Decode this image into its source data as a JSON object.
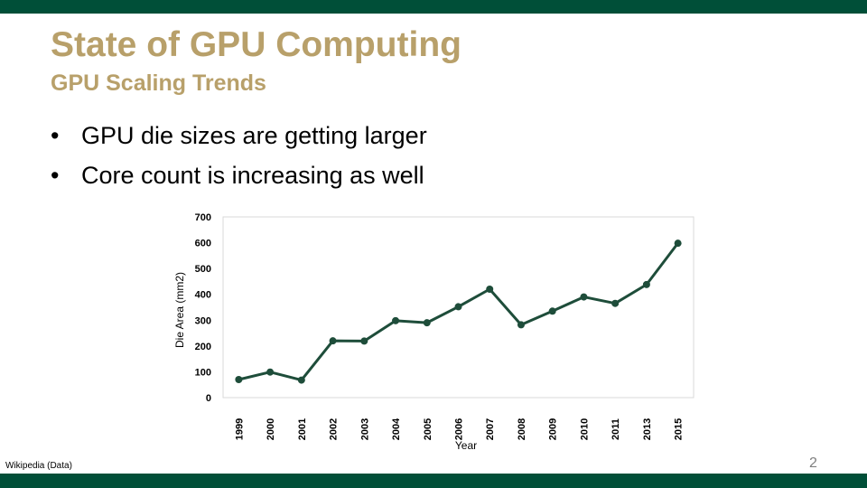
{
  "slide": {
    "title": "State of GPU Computing",
    "subtitle": "GPU Scaling Trends",
    "bullets": [
      "GPU die sizes are getting larger",
      "Core count is increasing as well"
    ],
    "bullet_glyph": "•",
    "source_note": "Wikipedia (Data)",
    "page_number": "2"
  },
  "colors": {
    "bar": "#004f38",
    "title": "#b8a06a",
    "line": "#1e4d3a",
    "grid": "#d9d9d9",
    "text": "#000000"
  },
  "chart_data": {
    "type": "line",
    "title": "",
    "xlabel": "Year",
    "ylabel": "Die Area (mm2)",
    "categories": [
      "1999",
      "2000",
      "2001",
      "2002",
      "2003",
      "2004",
      "2005",
      "2006",
      "2007",
      "2008",
      "2009",
      "2010",
      "2011",
      "2013",
      "2015"
    ],
    "values": [
      70,
      99,
      68,
      220,
      219,
      298,
      290,
      352,
      420,
      282,
      335,
      390,
      365,
      438,
      598
    ],
    "y_ticks": [
      0,
      100,
      200,
      300,
      400,
      500,
      600,
      700
    ],
    "ylim": [
      0,
      700
    ],
    "grid": false,
    "legend": "none",
    "marker": "circle"
  }
}
